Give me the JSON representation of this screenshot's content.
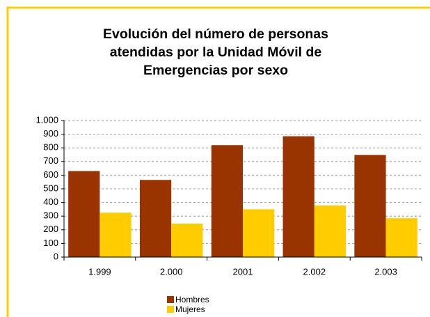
{
  "chart_data": {
    "type": "bar",
    "title": "Evolución del número de personas atendidas por la Unidad Móvil de Emergencias por sexo",
    "categories": [
      "1.999",
      "2.000",
      "2001",
      "2.002",
      "2.003"
    ],
    "series": [
      {
        "name": "Hombres",
        "color": "#993300",
        "values": [
          630,
          565,
          820,
          885,
          748
        ]
      },
      {
        "name": "Mujeres",
        "color": "#ffcc00",
        "values": [
          325,
          245,
          350,
          378,
          285
        ]
      }
    ],
    "ylim": [
      0,
      1000
    ],
    "yticks": [
      0,
      100,
      200,
      300,
      400,
      500,
      600,
      700,
      800,
      900,
      {
        "value": 1000,
        "label": "1.000"
      }
    ],
    "grid": true,
    "legend": "bottom"
  }
}
